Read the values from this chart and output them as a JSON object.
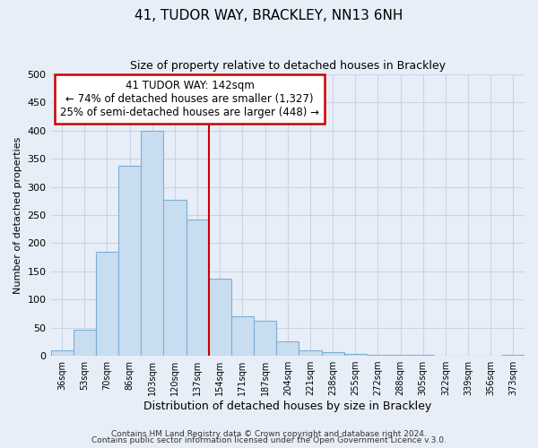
{
  "title": "41, TUDOR WAY, BRACKLEY, NN13 6NH",
  "subtitle": "Size of property relative to detached houses in Brackley",
  "xlabel": "Distribution of detached houses by size in Brackley",
  "ylabel": "Number of detached properties",
  "bar_labels": [
    "36sqm",
    "53sqm",
    "70sqm",
    "86sqm",
    "103sqm",
    "120sqm",
    "137sqm",
    "154sqm",
    "171sqm",
    "187sqm",
    "204sqm",
    "221sqm",
    "238sqm",
    "255sqm",
    "272sqm",
    "288sqm",
    "305sqm",
    "322sqm",
    "339sqm",
    "356sqm",
    "373sqm"
  ],
  "bar_heights": [
    10,
    47,
    185,
    338,
    400,
    277,
    242,
    137,
    70,
    62,
    25,
    10,
    7,
    4,
    2,
    2,
    1,
    0,
    0,
    0,
    2
  ],
  "bar_color": "#c9ddf0",
  "bar_edgecolor": "#7aafd4",
  "vline_color": "#cc0000",
  "annotation_title": "41 TUDOR WAY: 142sqm",
  "annotation_line1": "← 74% of detached houses are smaller (1,327)",
  "annotation_line2": "25% of semi-detached houses are larger (448) →",
  "annotation_box_edgecolor": "#cc0000",
  "ylim": [
    0,
    500
  ],
  "yticks": [
    0,
    50,
    100,
    150,
    200,
    250,
    300,
    350,
    400,
    450,
    500
  ],
  "footer1": "Contains HM Land Registry data © Crown copyright and database right 2024.",
  "footer2": "Contains public sector information licensed under the Open Government Licence v.3.0.",
  "bg_color": "#e8eef8",
  "plot_bg_color": "#e8eef8",
  "grid_color": "#c8d4e8"
}
